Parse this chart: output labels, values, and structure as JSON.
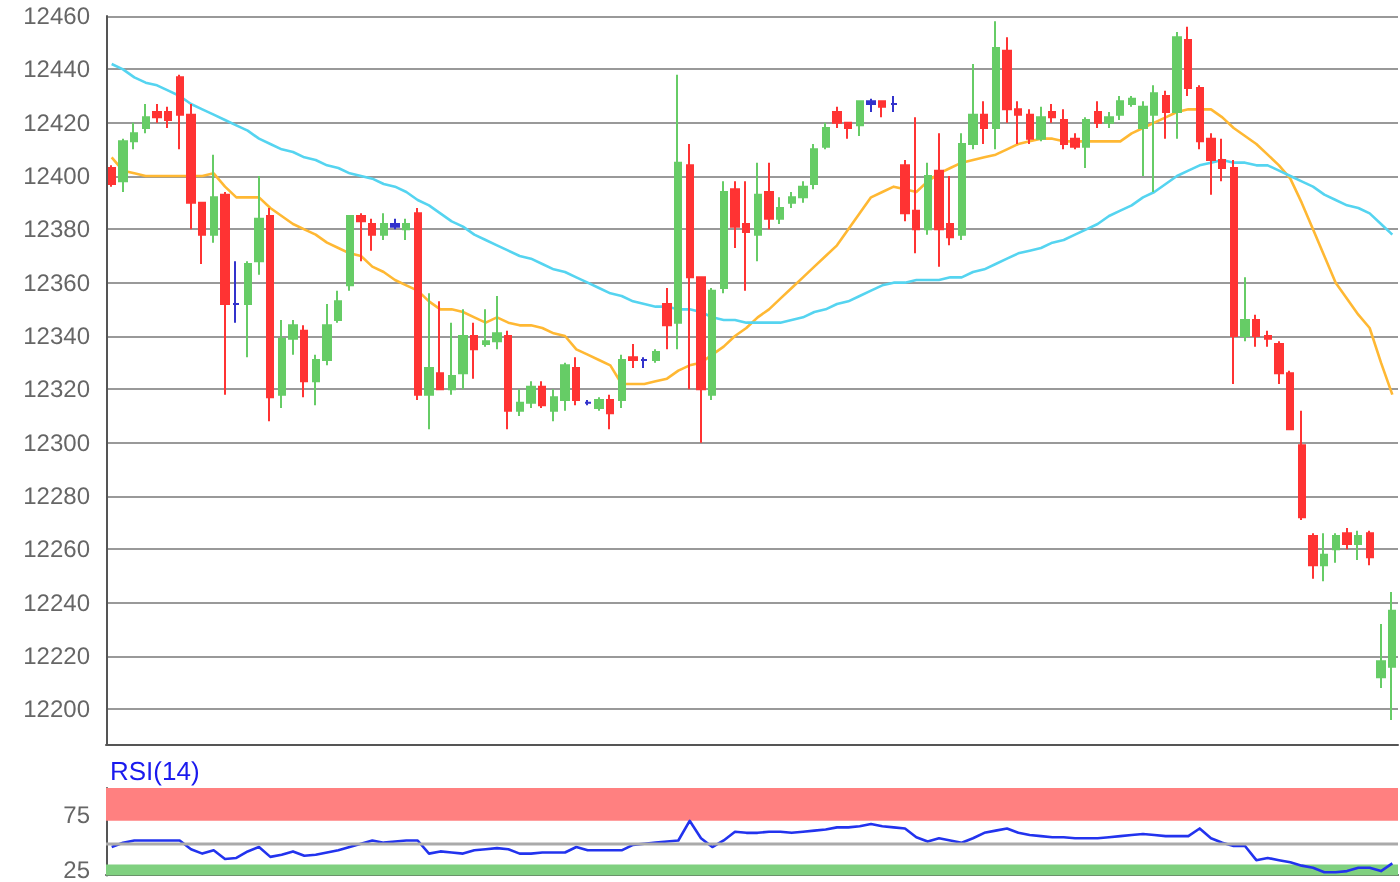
{
  "chart_data": [
    {
      "type": "candlestick",
      "categories": [
        null,
        null,
        null,
        null,
        null,
        null,
        null,
        null,
        null,
        null,
        null,
        null,
        null,
        null,
        null,
        null,
        null,
        null,
        null,
        null,
        null,
        null,
        null,
        null,
        null,
        null,
        null,
        null,
        null,
        null,
        null,
        null,
        null,
        null,
        null,
        null,
        null,
        null,
        null,
        null,
        null,
        null,
        null,
        null,
        null,
        null,
        null,
        null,
        null,
        null,
        null,
        null,
        null,
        null,
        null,
        null,
        null,
        null,
        null,
        null,
        null,
        null,
        null,
        null,
        null,
        null,
        null,
        null,
        null,
        null,
        null,
        null,
        null,
        null,
        null,
        null,
        null,
        null,
        null,
        null,
        null,
        null,
        null,
        null,
        null,
        null,
        null,
        null,
        null,
        null,
        null,
        null,
        null,
        null,
        null,
        null,
        null,
        null,
        null,
        null,
        null,
        null,
        null,
        null,
        null,
        null,
        null,
        null,
        null,
        null,
        null,
        null,
        null,
        null
      ],
      "ohlc": [
        [
          12403,
          12404,
          12396,
          12397
        ],
        [
          12398,
          12414,
          12394,
          12413
        ],
        [
          12413,
          12420,
          12410,
          12416
        ],
        [
          12418,
          12427,
          12416,
          12422
        ],
        [
          12424,
          12427,
          12420,
          12422
        ],
        [
          12424,
          12426,
          12418,
          12421
        ],
        [
          12437,
          12438,
          12410,
          12423
        ],
        [
          12423,
          12427,
          12380,
          12390
        ],
        [
          12390,
          12390,
          12367,
          12378
        ],
        [
          12378,
          12408,
          12375,
          12392
        ],
        [
          12393,
          12394,
          12318,
          12352
        ],
        [
          12352,
          12368,
          12345,
          12352
        ],
        [
          12352,
          12368,
          12332,
          12367
        ],
        [
          12368,
          12400,
          12363,
          12384
        ],
        [
          12385,
          12388,
          12308,
          12317
        ],
        [
          12318,
          12346,
          12313,
          12339
        ],
        [
          12339,
          12346,
          12333,
          12344
        ],
        [
          12342,
          12344,
          12317,
          12323
        ],
        [
          12323,
          12333,
          12314,
          12331
        ],
        [
          12331,
          12352,
          12329,
          12344
        ],
        [
          12346,
          12357,
          12345,
          12353
        ],
        [
          12359,
          12385,
          12357,
          12385
        ],
        [
          12385,
          12386,
          12368,
          12383
        ],
        [
          12382,
          12384,
          12372,
          12378
        ],
        [
          12378,
          12386,
          12376,
          12382
        ],
        [
          12381,
          12384,
          12380,
          12382
        ],
        [
          12380,
          12384,
          12376,
          12382
        ],
        [
          12386,
          12388,
          12316,
          12318
        ],
        [
          12318,
          12356,
          12305,
          12328
        ],
        [
          12326,
          12353,
          12320,
          12320
        ],
        [
          12320,
          12345,
          12318,
          12325
        ],
        [
          12326,
          12350,
          12320,
          12340
        ],
        [
          12340,
          12345,
          12324,
          12335
        ],
        [
          12337,
          12350,
          12336,
          12338
        ],
        [
          12338,
          12355,
          12335,
          12341
        ],
        [
          12340,
          12342,
          12305,
          12312
        ],
        [
          12312,
          12320,
          12310,
          12315
        ],
        [
          12315,
          12323,
          12313,
          12321
        ],
        [
          12321,
          12323,
          12313,
          12314
        ],
        [
          12312,
          12320,
          12308,
          12317
        ],
        [
          12316,
          12330,
          12312,
          12329
        ],
        [
          12328,
          12332,
          12314,
          12316
        ],
        [
          12315,
          12316,
          12314,
          12315
        ],
        [
          12313,
          12317,
          12312,
          12316
        ],
        [
          12316,
          12318,
          12305,
          12311
        ],
        [
          12316,
          12333,
          12313,
          12331
        ],
        [
          12332,
          12337,
          12328,
          12331
        ],
        [
          12331,
          12332,
          12328,
          12331
        ],
        [
          12331,
          12335,
          12330,
          12334
        ],
        [
          12352,
          12358,
          12335,
          12344
        ],
        [
          12345,
          12438,
          12335,
          12405
        ],
        [
          12404,
          12412,
          12320,
          12362
        ],
        [
          12362,
          12362,
          12300,
          12320
        ],
        [
          12318,
          12358,
          12316,
          12357
        ],
        [
          12358,
          12398,
          12356,
          12394
        ],
        [
          12395,
          12398,
          12373,
          12381
        ],
        [
          12382,
          12398,
          12357,
          12379
        ],
        [
          12378,
          12405,
          12368,
          12393
        ],
        [
          12394,
          12405,
          12380,
          12384
        ],
        [
          12384,
          12392,
          12382,
          12388
        ],
        [
          12390,
          12394,
          12388,
          12392
        ],
        [
          12392,
          12398,
          12390,
          12396
        ],
        [
          12397,
          12412,
          12395,
          12410
        ],
        [
          12411,
          12420,
          12410,
          12418
        ],
        [
          12424,
          12426,
          12418,
          12420
        ],
        [
          12420,
          12420,
          12414,
          12418
        ],
        [
          12419,
          12428,
          12415,
          12428
        ],
        [
          12427,
          12429,
          12424,
          12428
        ],
        [
          12428,
          12428,
          12422,
          12426
        ],
        [
          12427,
          12430,
          12424,
          12427
        ],
        [
          12404,
          12406,
          12383,
          12386
        ],
        [
          12387,
          12422,
          12371,
          12380
        ],
        [
          12380,
          12405,
          12378,
          12400
        ],
        [
          12402,
          12416,
          12366,
          12380
        ],
        [
          12382,
          12400,
          12374,
          12377
        ],
        [
          12378,
          12416,
          12376,
          12412
        ],
        [
          12412,
          12442,
          12410,
          12423
        ],
        [
          12423,
          12428,
          12412,
          12418
        ],
        [
          12418,
          12458,
          12410,
          12448
        ],
        [
          12447,
          12452,
          12420,
          12425
        ],
        [
          12425,
          12428,
          12412,
          12423
        ],
        [
          12423,
          12425,
          12412,
          12414
        ],
        [
          12414,
          12426,
          12413,
          12422
        ],
        [
          12424,
          12427,
          12420,
          12422
        ],
        [
          12421,
          12425,
          12410,
          12412
        ],
        [
          12414,
          12416,
          12410,
          12411
        ],
        [
          12411,
          12422,
          12403,
          12421
        ],
        [
          12424,
          12428,
          12418,
          12420
        ],
        [
          12420,
          12424,
          12418,
          12422
        ],
        [
          12423,
          12430,
          12421,
          12428
        ],
        [
          12427,
          12430,
          12426,
          12429
        ],
        [
          12418,
          12428,
          12400,
          12426
        ],
        [
          12423,
          12434,
          12394,
          12431
        ],
        [
          12430,
          12432,
          12414,
          12424
        ],
        [
          12424,
          12454,
          12414,
          12452
        ],
        [
          12451,
          12456,
          12430,
          12433
        ],
        [
          12433,
          12434,
          12410,
          12413
        ],
        [
          12414,
          12416,
          12393,
          12406
        ],
        [
          12406,
          12414,
          12398,
          12403
        ],
        [
          12403,
          12406,
          12322,
          12340
        ],
        [
          12340,
          12362,
          12338,
          12346
        ],
        [
          12346,
          12348,
          12336,
          12340
        ],
        [
          12340,
          12342,
          12336,
          12339
        ],
        [
          12337,
          12338,
          12322,
          12326
        ],
        [
          12326,
          12327,
          12305,
          12305
        ],
        [
          12299,
          12312,
          12271,
          12272
        ],
        [
          12265,
          12266,
          12249,
          12254
        ],
        [
          12254,
          12266,
          12248,
          12258
        ],
        [
          12260,
          12266,
          12255,
          12265
        ],
        [
          12266,
          12268,
          12260,
          12262
        ],
        [
          12262,
          12267,
          12256,
          12265
        ],
        [
          12266,
          12267,
          12254,
          12257
        ],
        [
          12212,
          12232,
          12208,
          12218
        ],
        [
          12216,
          12244,
          12196,
          12237
        ]
      ],
      "colors": [
        "#ff3333",
        "#66cc66",
        "#66cc66",
        "#66cc66",
        "#ff3333",
        "#ff3333",
        "#ff3333",
        "#ff3333",
        "#ff3333",
        "#66cc66",
        "#ff3333",
        "#3333cc",
        "#66cc66",
        "#66cc66",
        "#ff3333",
        "#66cc66",
        "#66cc66",
        "#ff3333",
        "#66cc66",
        "#66cc66",
        "#66cc66",
        "#66cc66",
        "#ff3333",
        "#ff3333",
        "#66cc66",
        "#3333cc",
        "#66cc66",
        "#ff3333",
        "#66cc66",
        "#ff3333",
        "#66cc66",
        "#66cc66",
        "#ff3333",
        "#66cc66",
        "#66cc66",
        "#ff3333",
        "#66cc66",
        "#66cc66",
        "#ff3333",
        "#66cc66",
        "#66cc66",
        "#ff3333",
        "#3333cc",
        "#66cc66",
        "#ff3333",
        "#66cc66",
        "#ff3333",
        "#3333cc",
        "#66cc66",
        "#ff3333",
        "#66cc66",
        "#ff3333",
        "#ff3333",
        "#66cc66",
        "#66cc66",
        "#ff3333",
        "#ff3333",
        "#66cc66",
        "#ff3333",
        "#66cc66",
        "#66cc66",
        "#66cc66",
        "#66cc66",
        "#66cc66",
        "#ff3333",
        "#ff3333",
        "#66cc66",
        "#3333cc",
        "#ff3333",
        "#3333cc",
        "#ff3333",
        "#ff3333",
        "#66cc66",
        "#ff3333",
        "#ff3333",
        "#66cc66",
        "#66cc66",
        "#ff3333",
        "#66cc66",
        "#ff3333",
        "#ff3333",
        "#ff3333",
        "#66cc66",
        "#ff3333",
        "#ff3333",
        "#ff3333",
        "#66cc66",
        "#ff3333",
        "#66cc66",
        "#66cc66",
        "#66cc66",
        "#66cc66",
        "#66cc66",
        "#ff3333",
        "#66cc66",
        "#ff3333",
        "#ff3333",
        "#ff3333",
        "#ff3333",
        "#ff3333",
        "#66cc66",
        "#ff3333",
        "#ff3333",
        "#ff3333",
        "#ff3333",
        "#ff3333",
        "#ff3333",
        "#66cc66",
        "#66cc66",
        "#ff3333",
        "#66cc66",
        "#ff3333",
        "#66cc66",
        "#66cc66"
      ],
      "series": [
        {
          "type": "line",
          "color": "#ffb833",
          "values": [
            12407,
            12402,
            12401,
            12400,
            12400,
            12400,
            12400,
            12400,
            12400,
            12401,
            12396,
            12392,
            12392,
            12392,
            12388,
            12385,
            12382,
            12380,
            12378,
            12375,
            12373,
            12371,
            12370,
            12366,
            12364,
            12361,
            12359,
            12357,
            12353,
            12350,
            12350,
            12349,
            12347,
            12345,
            12347,
            12345,
            12344,
            12344,
            12343,
            12341,
            12340,
            12335,
            12333,
            12331,
            12329,
            12322,
            12322,
            12322,
            12323,
            12324,
            12327,
            12329,
            12330,
            12333,
            12336,
            12340,
            12343,
            12347,
            12350,
            12354,
            12358,
            12362,
            12366,
            12370,
            12374,
            12380,
            12386,
            12392,
            12394,
            12396,
            12395,
            12394,
            12398,
            12401,
            12403,
            12405,
            12406,
            12407,
            12408,
            12410,
            12412,
            12413,
            12414,
            12414,
            12413,
            12413,
            12413,
            12413,
            12413,
            12413,
            12416,
            12418,
            12420,
            12422,
            12424,
            12425,
            12425,
            12425,
            12422,
            12418,
            12415,
            12412,
            12408,
            12404,
            12399,
            12390,
            12380,
            12370,
            12360,
            12354,
            12348,
            12343,
            12330,
            12318
          ]
        },
        {
          "type": "line",
          "color": "#55d4f0",
          "values": [
            12442,
            12440,
            12437,
            12435,
            12434,
            12432,
            12430,
            12427,
            12425,
            12423,
            12421,
            12419,
            12417,
            12414,
            12412,
            12410,
            12409,
            12407,
            12406,
            12404,
            12403,
            12401,
            12400,
            12399,
            12397,
            12396,
            12394,
            12391,
            12389,
            12386,
            12383,
            12381,
            12378,
            12376,
            12374,
            12372,
            12370,
            12369,
            12367,
            12365,
            12364,
            12362,
            12360,
            12358,
            12356,
            12355,
            12353,
            12352,
            12351,
            12351,
            12350,
            12350,
            12349,
            12347,
            12346,
            12346,
            12345,
            12345,
            12345,
            12345,
            12346,
            12347,
            12349,
            12350,
            12352,
            12353,
            12355,
            12357,
            12359,
            12360,
            12360,
            12361,
            12361,
            12361,
            12362,
            12362,
            12364,
            12365,
            12367,
            12369,
            12371,
            12372,
            12373,
            12375,
            12376,
            12378,
            12380,
            12382,
            12385,
            12387,
            12389,
            12392,
            12394,
            12397,
            12400,
            12402,
            12404,
            12405,
            12406,
            12405,
            12405,
            12404,
            12404,
            12402,
            12400,
            12398,
            12396,
            12393,
            12391,
            12389,
            12388,
            12386,
            12382,
            12378
          ]
        }
      ],
      "ylim": [
        12187,
        12460
      ],
      "yticks": [
        12200,
        12220,
        12240,
        12260,
        12280,
        12300,
        12320,
        12340,
        12360,
        12380,
        12400,
        12420,
        12440,
        12460
      ],
      "grid": "y"
    },
    {
      "type": "line",
      "title": "RSI(14)",
      "categories": [
        null,
        null,
        null,
        null,
        null,
        null,
        null,
        null,
        null,
        null,
        null,
        null,
        null,
        null,
        null,
        null,
        null,
        null,
        null,
        null,
        null,
        null,
        null,
        null,
        null,
        null,
        null,
        null,
        null,
        null,
        null,
        null,
        null,
        null,
        null,
        null,
        null,
        null,
        null,
        null,
        null,
        null,
        null,
        null,
        null,
        null,
        null,
        null,
        null,
        null,
        null,
        null,
        null,
        null,
        null,
        null,
        null,
        null,
        null,
        null,
        null,
        null,
        null,
        null,
        null,
        null,
        null,
        null,
        null,
        null,
        null,
        null,
        null,
        null,
        null,
        null,
        null,
        null,
        null,
        null,
        null,
        null,
        null,
        null,
        null,
        null,
        null,
        null,
        null,
        null,
        null,
        null,
        null,
        null,
        null,
        null,
        null,
        null,
        null,
        null,
        null,
        null,
        null,
        null,
        null,
        null,
        null,
        null,
        null,
        null,
        null,
        null,
        null,
        null
      ],
      "series": [
        {
          "color": "#2233ee",
          "values": [
            46,
            50,
            52,
            52,
            52,
            52,
            52,
            44,
            40,
            43,
            35,
            36,
            42,
            46,
            37,
            39,
            42,
            38,
            39,
            41,
            43,
            46,
            49,
            52,
            50,
            51,
            52,
            52,
            40,
            42,
            41,
            40,
            43,
            44,
            45,
            44,
            40,
            40,
            41,
            41,
            41,
            46,
            43,
            43,
            43,
            43,
            48,
            49,
            50,
            51,
            52,
            70,
            54,
            46,
            52,
            60,
            59,
            59,
            60,
            60,
            59,
            60,
            61,
            62,
            64,
            64,
            65,
            67,
            65,
            64,
            63,
            55,
            51,
            54,
            52,
            50,
            54,
            59,
            61,
            63,
            59,
            57,
            56,
            55,
            55,
            54,
            54,
            54,
            55,
            56,
            57,
            58,
            57,
            56,
            56,
            56,
            63,
            54,
            50,
            47,
            47,
            34,
            36,
            34,
            32,
            29,
            27,
            23,
            23,
            24,
            27,
            27,
            24,
            31
          ]
        }
      ],
      "ylim": [
        20,
        100
      ],
      "yticks": [
        25,
        75
      ],
      "bands": [
        {
          "axis": "y",
          "from": 70,
          "to": 100,
          "color": "#ff8080"
        },
        {
          "axis": "y",
          "from": 20,
          "to": 30,
          "color": "#80d080"
        }
      ],
      "ref_lines": [
        {
          "axis": "y",
          "value": 50,
          "color": "#aaaaaa"
        }
      ]
    }
  ]
}
